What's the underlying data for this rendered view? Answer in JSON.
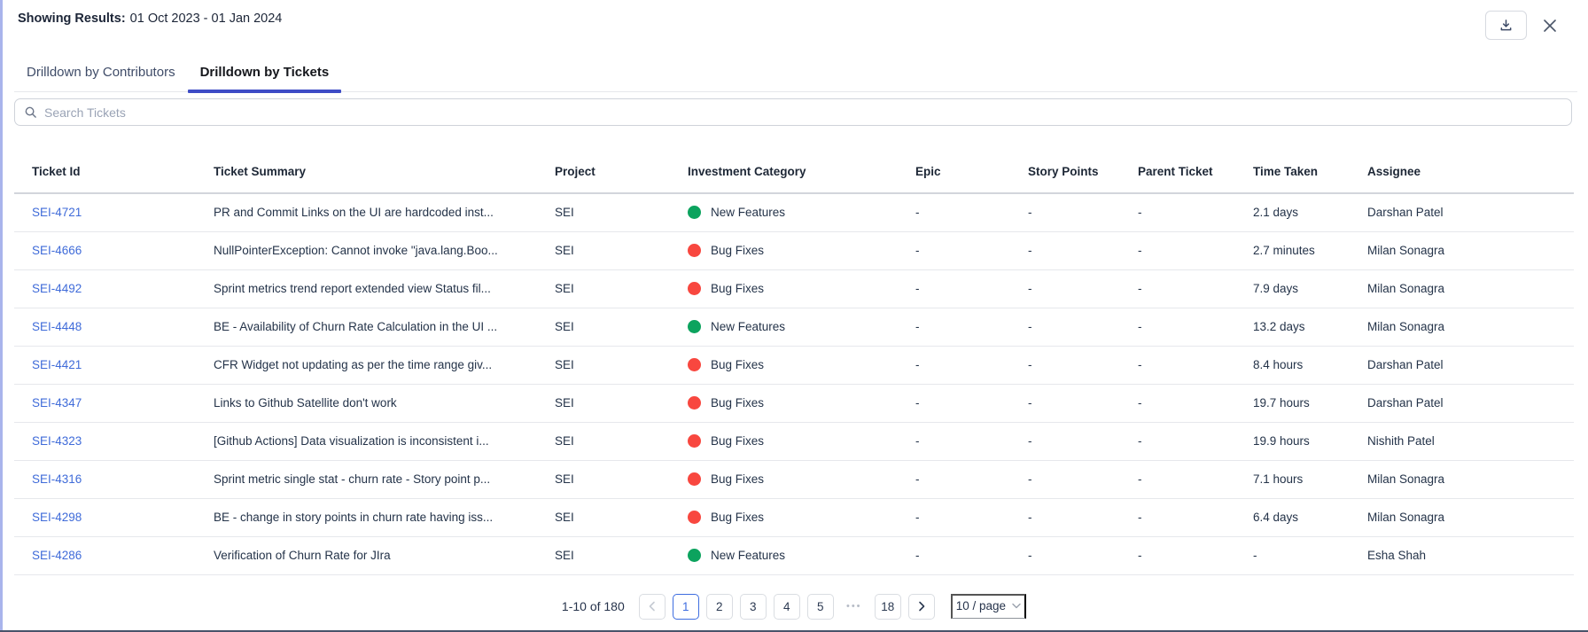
{
  "header": {
    "showing_label": "Showing Results:",
    "date_range": "01 Oct 2023 - 01 Jan 2024"
  },
  "tabs": [
    {
      "label": "Drilldown by Contributors",
      "active": false
    },
    {
      "label": "Drilldown by Tickets",
      "active": true
    }
  ],
  "search": {
    "placeholder": "Search Tickets"
  },
  "table": {
    "columns": [
      "Ticket Id",
      "Ticket Summary",
      "Project",
      "Investment Category",
      "Epic",
      "Story Points",
      "Parent Ticket",
      "Time Taken",
      "Assignee"
    ],
    "rows": [
      {
        "ticket_id": "SEI-4721",
        "summary": "PR and Commit Links on the UI are hardcoded inst...",
        "project": "SEI",
        "category": "New Features",
        "category_color": "#0CA35E",
        "epic": "-",
        "story_points": "-",
        "parent_ticket": "-",
        "time_taken": "2.1 days",
        "assignee": "Darshan Patel"
      },
      {
        "ticket_id": "SEI-4666",
        "summary": "NullPointerException: Cannot invoke \"java.lang.Boo...",
        "project": "SEI",
        "category": "Bug Fixes",
        "category_color": "#F8473F",
        "epic": "-",
        "story_points": "-",
        "parent_ticket": "-",
        "time_taken": "2.7 minutes",
        "assignee": "Milan Sonagra"
      },
      {
        "ticket_id": "SEI-4492",
        "summary": "Sprint metrics trend report extended view Status fil...",
        "project": "SEI",
        "category": "Bug Fixes",
        "category_color": "#F8473F",
        "epic": "-",
        "story_points": "-",
        "parent_ticket": "-",
        "time_taken": "7.9 days",
        "assignee": "Milan Sonagra"
      },
      {
        "ticket_id": "SEI-4448",
        "summary": "BE - Availability of Churn Rate Calculation in the UI ...",
        "project": "SEI",
        "category": "New Features",
        "category_color": "#0CA35E",
        "epic": "-",
        "story_points": "-",
        "parent_ticket": "-",
        "time_taken": "13.2 days",
        "assignee": "Milan Sonagra"
      },
      {
        "ticket_id": "SEI-4421",
        "summary": "CFR Widget not updating as per the time range giv...",
        "project": "SEI",
        "category": "Bug Fixes",
        "category_color": "#F8473F",
        "epic": "-",
        "story_points": "-",
        "parent_ticket": "-",
        "time_taken": "8.4 hours",
        "assignee": "Darshan Patel"
      },
      {
        "ticket_id": "SEI-4347",
        "summary": "Links to Github Satellite don't work",
        "project": "SEI",
        "category": "Bug Fixes",
        "category_color": "#F8473F",
        "epic": "-",
        "story_points": "-",
        "parent_ticket": "-",
        "time_taken": "19.7 hours",
        "assignee": "Darshan Patel"
      },
      {
        "ticket_id": "SEI-4323",
        "summary": "[Github Actions] Data visualization is inconsistent i...",
        "project": "SEI",
        "category": "Bug Fixes",
        "category_color": "#F8473F",
        "epic": "-",
        "story_points": "-",
        "parent_ticket": "-",
        "time_taken": "19.9 hours",
        "assignee": "Nishith Patel"
      },
      {
        "ticket_id": "SEI-4316",
        "summary": "Sprint metric single stat - churn rate - Story point p...",
        "project": "SEI",
        "category": "Bug Fixes",
        "category_color": "#F8473F",
        "epic": "-",
        "story_points": "-",
        "parent_ticket": "-",
        "time_taken": "7.1 hours",
        "assignee": "Milan Sonagra"
      },
      {
        "ticket_id": "SEI-4298",
        "summary": "BE - change in story points in churn rate having iss...",
        "project": "SEI",
        "category": "Bug Fixes",
        "category_color": "#F8473F",
        "epic": "-",
        "story_points": "-",
        "parent_ticket": "-",
        "time_taken": "6.4 days",
        "assignee": "Milan Sonagra"
      },
      {
        "ticket_id": "SEI-4286",
        "summary": "Verification of Churn Rate for JIra",
        "project": "SEI",
        "category": "New Features",
        "category_color": "#0CA35E",
        "epic": "-",
        "story_points": "-",
        "parent_ticket": "-",
        "time_taken": "-",
        "assignee": "Esha Shah"
      }
    ]
  },
  "pagination": {
    "range_text": "1-10 of 180",
    "pages": [
      "1",
      "2",
      "3",
      "4",
      "5"
    ],
    "active_page": "1",
    "ellipsis": "•••",
    "last_page": "18",
    "page_size": "10 / page"
  },
  "colors": {
    "accent_blue": "#3E4CC6",
    "link_blue": "#3F6BD9",
    "active_page_blue": "#3E6DE0",
    "new_features_green": "#0CA35E",
    "bug_fixes_red": "#F8473F",
    "left_accent": "#A9B4EC"
  }
}
